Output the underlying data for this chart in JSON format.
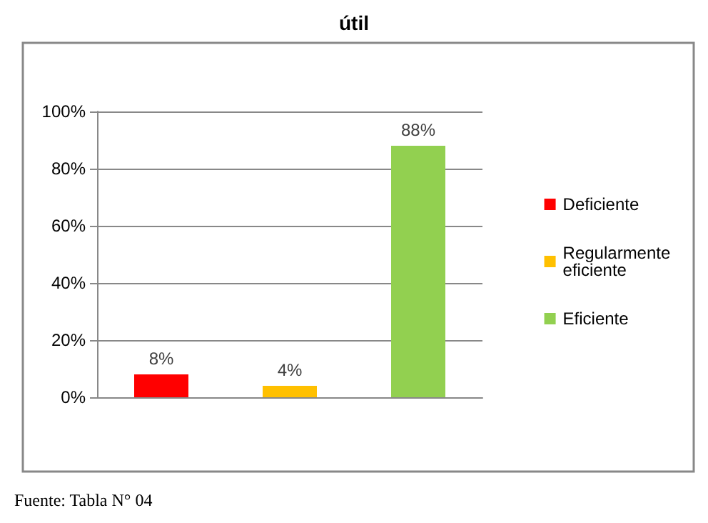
{
  "chart_data": {
    "type": "bar",
    "title": "útil",
    "categories": [
      null,
      null,
      null
    ],
    "series": [
      {
        "name": "Deficiente",
        "color": "#ff0000",
        "values": [
          8,
          null,
          null
        ],
        "value_labels": [
          "8%",
          null,
          null
        ]
      },
      {
        "name": "Regularmente eficiente",
        "color": "#ffc000",
        "values": [
          null,
          4,
          null
        ],
        "value_labels": [
          null,
          "4%",
          null
        ]
      },
      {
        "name": "Eficiente",
        "color": "#92d050",
        "values": [
          null,
          null,
          88
        ],
        "value_labels": [
          null,
          null,
          "88%"
        ]
      }
    ],
    "ylim": [
      0,
      100
    ],
    "yticks": [
      {
        "value": 0,
        "label": "0%"
      },
      {
        "value": 20,
        "label": "20%"
      },
      {
        "value": 40,
        "label": "40%"
      },
      {
        "value": 60,
        "label": "60%"
      },
      {
        "value": 80,
        "label": "80%"
      },
      {
        "value": 100,
        "label": "100%"
      }
    ],
    "grid": "y",
    "legend": "right",
    "annotations": [
      "Fuente: Tabla N° 04"
    ]
  }
}
